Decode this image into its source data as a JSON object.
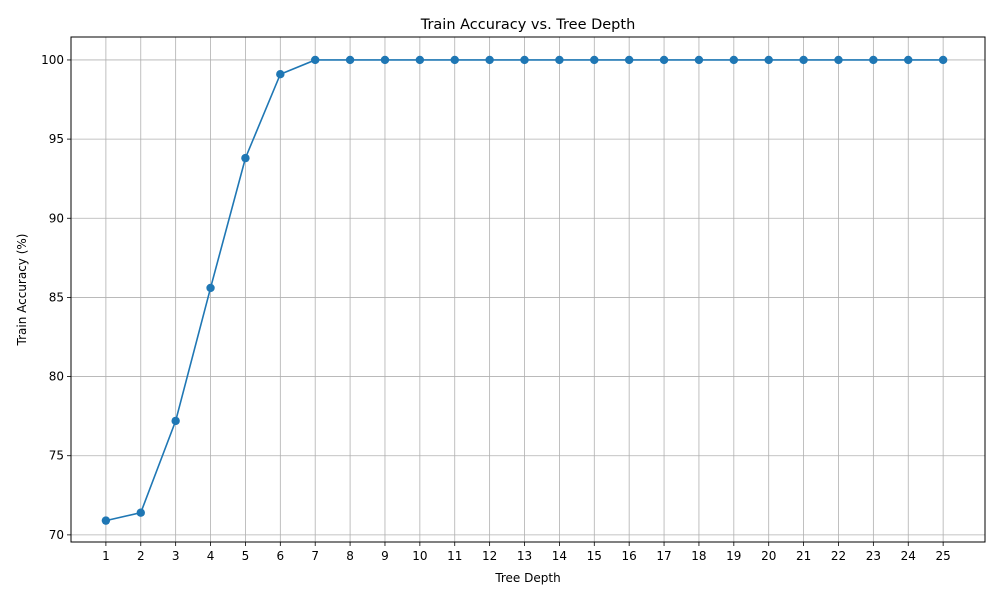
{
  "chart_data": {
    "type": "line",
    "title": "Train Accuracy vs. Tree Depth",
    "xlabel": "Tree Depth",
    "ylabel": "Train Accuracy (%)",
    "x": [
      1,
      2,
      3,
      4,
      5,
      6,
      7,
      8,
      9,
      10,
      11,
      12,
      13,
      14,
      15,
      16,
      17,
      18,
      19,
      20,
      21,
      22,
      23,
      24,
      25
    ],
    "x_tick_labels": [
      "1",
      "2",
      "3",
      "4",
      "5",
      "6",
      "7",
      "8",
      "9",
      "10",
      "11",
      "12",
      "13",
      "14",
      "15",
      "16",
      "17",
      "18",
      "19",
      "20",
      "21",
      "22",
      "23",
      "24",
      "25"
    ],
    "series": [
      {
        "values": [
          70.9,
          71.4,
          77.2,
          85.6,
          93.8,
          99.1,
          100,
          100,
          100,
          100,
          100,
          100,
          100,
          100,
          100,
          100,
          100,
          100,
          100,
          100,
          100,
          100,
          100,
          100,
          100
        ],
        "color": "#1f77b4",
        "marker": "circle"
      }
    ],
    "y_ticks": [
      70,
      75,
      80,
      85,
      90,
      95,
      100
    ],
    "y_tick_labels": [
      "70",
      "75",
      "80",
      "85",
      "90",
      "95",
      "100"
    ],
    "xlim": [
      0,
      26.2
    ],
    "ylim": [
      69.55,
      101.45
    ],
    "grid": true,
    "grid_color": "#b0b0b0",
    "legend": "none"
  }
}
